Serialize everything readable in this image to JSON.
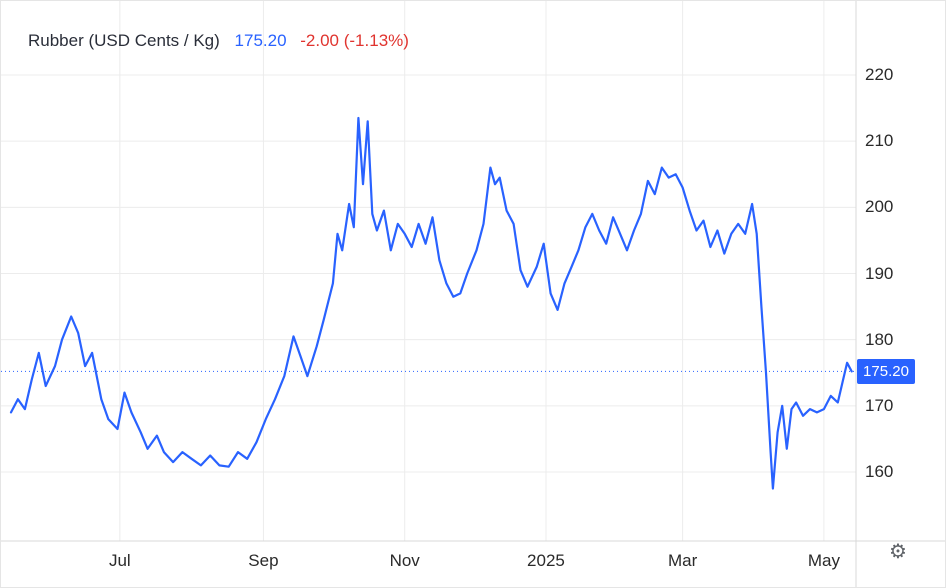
{
  "header": {
    "title": "Rubber (USD Cents / Kg)",
    "price": "175.20",
    "change": "-2.00 (-1.13%)"
  },
  "price_badge": {
    "label": "175.20"
  },
  "icons": {
    "settings_glyph": "⚙"
  },
  "colors": {
    "line_blue": "#2962ff",
    "change_red": "#e0342f",
    "title_text": "#2a2e39",
    "axis_text": "#2a2a2a",
    "grid": "#ececec",
    "axis_line": "#d9d9d9",
    "badge_text": "#ffffff",
    "gear_gray": "#5f6368",
    "background": "#ffffff"
  },
  "chart_data": {
    "type": "line",
    "title": "Rubber (USD Cents / Kg)",
    "unit": "USD Cents / Kg",
    "last_price": 175.2,
    "change": -2.0,
    "change_pct": -1.13,
    "ylim": [
      150,
      225
    ],
    "y_ticks": [
      220,
      210,
      200,
      190,
      180,
      170,
      160
    ],
    "x_ticks": [
      {
        "label": "Jul",
        "date": "2024-07-01"
      },
      {
        "label": "Sep",
        "date": "2024-09-01"
      },
      {
        "label": "Nov",
        "date": "2024-11-01"
      },
      {
        "label": "2025",
        "date": "2025-01-01"
      },
      {
        "label": "Mar",
        "date": "2025-03-01"
      },
      {
        "label": "May",
        "date": "2025-05-01"
      }
    ],
    "x_domain": [
      "2024-05-15",
      "2025-05-14"
    ],
    "grid": true,
    "legend": false,
    "last_price_line": true,
    "series": [
      {
        "name": "Rubber",
        "color": "#2962ff",
        "points": [
          [
            "2024-05-15",
            169
          ],
          [
            "2024-05-18",
            171
          ],
          [
            "2024-05-21",
            169.5
          ],
          [
            "2024-05-24",
            174
          ],
          [
            "2024-05-27",
            178
          ],
          [
            "2024-05-30",
            173
          ],
          [
            "2024-06-03",
            176
          ],
          [
            "2024-06-06",
            180
          ],
          [
            "2024-06-10",
            183.5
          ],
          [
            "2024-06-13",
            181
          ],
          [
            "2024-06-16",
            176
          ],
          [
            "2024-06-19",
            178
          ],
          [
            "2024-06-23",
            171
          ],
          [
            "2024-06-26",
            168
          ],
          [
            "2024-06-30",
            166.5
          ],
          [
            "2024-07-03",
            172
          ],
          [
            "2024-07-06",
            169
          ],
          [
            "2024-07-10",
            166
          ],
          [
            "2024-07-13",
            163.5
          ],
          [
            "2024-07-17",
            165.5
          ],
          [
            "2024-07-20",
            163
          ],
          [
            "2024-07-24",
            161.5
          ],
          [
            "2024-07-28",
            163
          ],
          [
            "2024-08-01",
            162
          ],
          [
            "2024-08-05",
            161
          ],
          [
            "2024-08-09",
            162.5
          ],
          [
            "2024-08-13",
            161
          ],
          [
            "2024-08-17",
            160.8
          ],
          [
            "2024-08-21",
            163
          ],
          [
            "2024-08-25",
            162
          ],
          [
            "2024-08-29",
            164.5
          ],
          [
            "2024-09-02",
            168
          ],
          [
            "2024-09-06",
            171
          ],
          [
            "2024-09-10",
            174.5
          ],
          [
            "2024-09-14",
            180.5
          ],
          [
            "2024-09-17",
            177.5
          ],
          [
            "2024-09-20",
            174.5
          ],
          [
            "2024-09-24",
            179
          ],
          [
            "2024-09-27",
            183
          ],
          [
            "2024-10-01",
            188.5
          ],
          [
            "2024-10-03",
            196
          ],
          [
            "2024-10-05",
            193.5
          ],
          [
            "2024-10-08",
            200.5
          ],
          [
            "2024-10-10",
            197
          ],
          [
            "2024-10-12",
            213.5
          ],
          [
            "2024-10-14",
            203.5
          ],
          [
            "2024-10-16",
            213
          ],
          [
            "2024-10-18",
            199
          ],
          [
            "2024-10-20",
            196.5
          ],
          [
            "2024-10-23",
            199.5
          ],
          [
            "2024-10-26",
            193.5
          ],
          [
            "2024-10-29",
            197.5
          ],
          [
            "2024-11-01",
            196
          ],
          [
            "2024-11-04",
            194
          ],
          [
            "2024-11-07",
            197.5
          ],
          [
            "2024-11-10",
            194.5
          ],
          [
            "2024-11-13",
            198.5
          ],
          [
            "2024-11-16",
            192
          ],
          [
            "2024-11-19",
            188.5
          ],
          [
            "2024-11-22",
            186.5
          ],
          [
            "2024-11-25",
            187
          ],
          [
            "2024-11-28",
            190
          ],
          [
            "2024-12-02",
            193.5
          ],
          [
            "2024-12-05",
            197.5
          ],
          [
            "2024-12-08",
            206
          ],
          [
            "2024-12-10",
            203.5
          ],
          [
            "2024-12-12",
            204.5
          ],
          [
            "2024-12-15",
            199.5
          ],
          [
            "2024-12-18",
            197.5
          ],
          [
            "2024-12-21",
            190.5
          ],
          [
            "2024-12-24",
            188
          ],
          [
            "2024-12-28",
            191
          ],
          [
            "2024-12-31",
            194.5
          ],
          [
            "2025-01-03",
            187
          ],
          [
            "2025-01-06",
            184.5
          ],
          [
            "2025-01-09",
            188.5
          ],
          [
            "2025-01-12",
            191
          ],
          [
            "2025-01-15",
            193.5
          ],
          [
            "2025-01-18",
            197
          ],
          [
            "2025-01-21",
            199
          ],
          [
            "2025-01-24",
            196.5
          ],
          [
            "2025-01-27",
            194.5
          ],
          [
            "2025-01-30",
            198.5
          ],
          [
            "2025-02-02",
            196
          ],
          [
            "2025-02-05",
            193.5
          ],
          [
            "2025-02-08",
            196.5
          ],
          [
            "2025-02-11",
            199
          ],
          [
            "2025-02-14",
            204
          ],
          [
            "2025-02-17",
            202
          ],
          [
            "2025-02-20",
            206
          ],
          [
            "2025-02-23",
            204.5
          ],
          [
            "2025-02-26",
            205
          ],
          [
            "2025-03-01",
            203
          ],
          [
            "2025-03-04",
            199.5
          ],
          [
            "2025-03-07",
            196.5
          ],
          [
            "2025-03-10",
            198
          ],
          [
            "2025-03-13",
            194
          ],
          [
            "2025-03-16",
            196.5
          ],
          [
            "2025-03-19",
            193
          ],
          [
            "2025-03-22",
            196
          ],
          [
            "2025-03-25",
            197.5
          ],
          [
            "2025-03-28",
            196
          ],
          [
            "2025-03-31",
            200.5
          ],
          [
            "2025-04-02",
            196
          ],
          [
            "2025-04-04",
            185
          ],
          [
            "2025-04-06",
            175
          ],
          [
            "2025-04-08",
            163
          ],
          [
            "2025-04-09",
            157.5
          ],
          [
            "2025-04-11",
            166
          ],
          [
            "2025-04-13",
            170
          ],
          [
            "2025-04-15",
            163.5
          ],
          [
            "2025-04-17",
            169.5
          ],
          [
            "2025-04-19",
            170.5
          ],
          [
            "2025-04-22",
            168.5
          ],
          [
            "2025-04-25",
            169.5
          ],
          [
            "2025-04-28",
            169
          ],
          [
            "2025-05-01",
            169.5
          ],
          [
            "2025-05-04",
            171.5
          ],
          [
            "2025-05-07",
            170.5
          ],
          [
            "2025-05-09",
            173.5
          ],
          [
            "2025-05-11",
            176.5
          ],
          [
            "2025-05-13",
            175.2
          ]
        ]
      }
    ]
  }
}
